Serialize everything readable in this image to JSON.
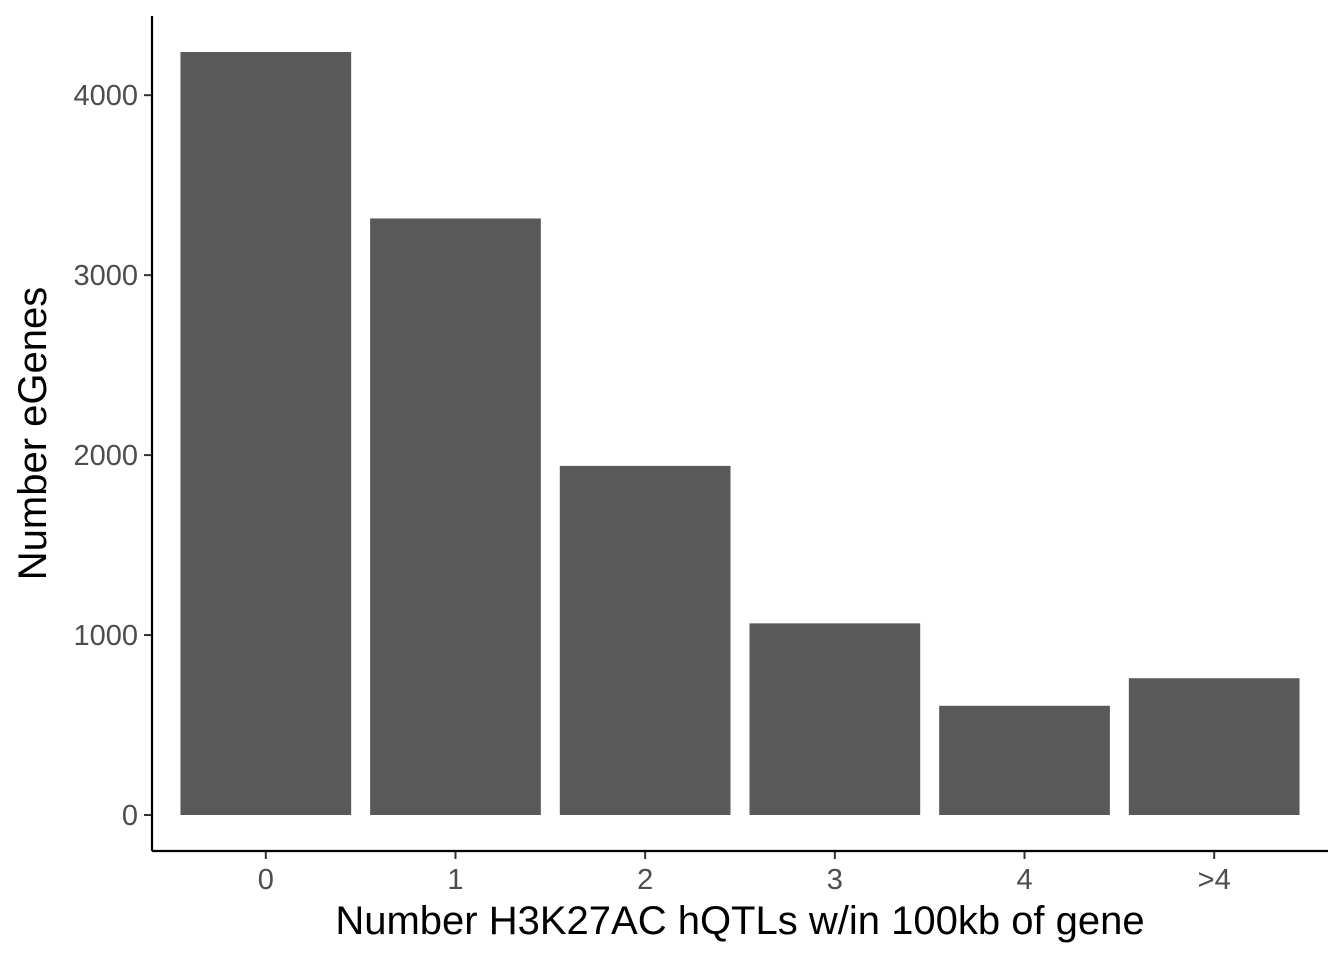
{
  "chart_data": {
    "type": "bar",
    "title": "",
    "xlabel": "Number H3K27AC hQTLs w/in 100kb of gene",
    "ylabel": "Number eGenes",
    "categories": [
      "0",
      "1",
      "2",
      "3",
      "4",
      ">4"
    ],
    "values": [
      4240,
      3315,
      1940,
      1065,
      607,
      760
    ],
    "y_ticks": [
      "0",
      "1000",
      "2000",
      "3000",
      "4000"
    ],
    "ylim": [
      -200,
      4440
    ],
    "grid": false,
    "legend": "none",
    "bar_color": "#595959",
    "axis_color": "#000000",
    "tick_label_color": "#4d4d4d"
  }
}
